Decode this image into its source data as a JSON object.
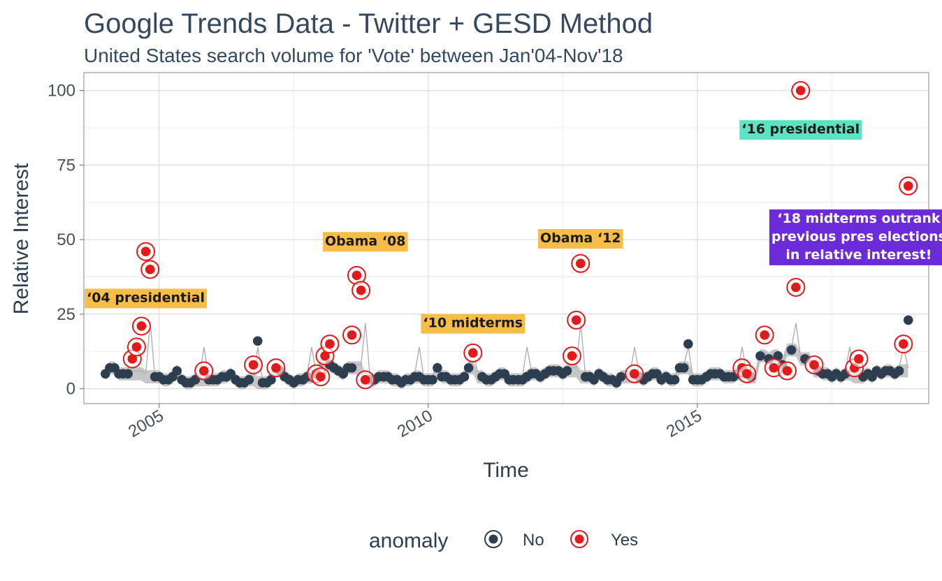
{
  "chart_data": {
    "type": "scatter",
    "title": "Google Trends Data - Twitter + GESD Method",
    "subtitle": "United States search volume for 'Vote' between Jan'04-Nov'18",
    "xlabel": "Time",
    "ylabel": "Relative Interest",
    "xlim": [
      2003.6,
      2019.3
    ],
    "ylim": [
      -5,
      106
    ],
    "x_ticks": [
      2005,
      2010,
      2015
    ],
    "x_tick_labels": [
      "2005",
      "2010",
      "2015"
    ],
    "y_ticks": [
      0,
      25,
      50,
      75,
      100
    ],
    "y_tick_labels": [
      "0",
      "25",
      "50",
      "75",
      "100"
    ],
    "grid": true,
    "legend": {
      "title": "anomaly",
      "position": "bottom",
      "entries": [
        {
          "label": "No",
          "color": "#2c3e50"
        },
        {
          "label": "Yes",
          "color": "#e31a1c"
        }
      ]
    },
    "colors": {
      "normal": "#2c3e50",
      "anomaly": "#e31a1c",
      "band": "#b3b3b3",
      "trend": "#b0b0b0"
    },
    "series": [
      {
        "name": "No",
        "points": [
          [
            2004.0,
            5
          ],
          [
            2004.08,
            7
          ],
          [
            2004.17,
            7
          ],
          [
            2004.25,
            5
          ],
          [
            2004.33,
            5
          ],
          [
            2004.42,
            5
          ],
          [
            2004.92,
            4
          ],
          [
            2005.0,
            4
          ],
          [
            2005.08,
            3
          ],
          [
            2005.17,
            3
          ],
          [
            2005.25,
            4
          ],
          [
            2005.33,
            6
          ],
          [
            2005.42,
            3
          ],
          [
            2005.5,
            2
          ],
          [
            2005.58,
            2
          ],
          [
            2005.67,
            3
          ],
          [
            2005.92,
            3
          ],
          [
            2006.0,
            3
          ],
          [
            2006.08,
            3
          ],
          [
            2006.17,
            4
          ],
          [
            2006.25,
            4
          ],
          [
            2006.33,
            5
          ],
          [
            2006.42,
            3
          ],
          [
            2006.5,
            2
          ],
          [
            2006.58,
            2
          ],
          [
            2006.67,
            3
          ],
          [
            2006.83,
            16
          ],
          [
            2006.92,
            2
          ],
          [
            2007.0,
            2
          ],
          [
            2007.08,
            3
          ],
          [
            2007.25,
            6
          ],
          [
            2007.33,
            4
          ],
          [
            2007.42,
            3
          ],
          [
            2007.5,
            2
          ],
          [
            2007.58,
            3
          ],
          [
            2007.67,
            3
          ],
          [
            2007.75,
            4
          ],
          [
            2008.17,
            8
          ],
          [
            2008.25,
            7
          ],
          [
            2008.33,
            6
          ],
          [
            2008.42,
            5
          ],
          [
            2008.5,
            7
          ],
          [
            2008.58,
            7
          ],
          [
            2008.92,
            3
          ],
          [
            2009.0,
            3
          ],
          [
            2009.08,
            4
          ],
          [
            2009.17,
            4
          ],
          [
            2009.25,
            4
          ],
          [
            2009.33,
            3
          ],
          [
            2009.42,
            3
          ],
          [
            2009.5,
            2
          ],
          [
            2009.58,
            3
          ],
          [
            2009.67,
            3
          ],
          [
            2009.75,
            4
          ],
          [
            2009.83,
            4
          ],
          [
            2009.92,
            3
          ],
          [
            2010.0,
            3
          ],
          [
            2010.08,
            3
          ],
          [
            2010.17,
            7
          ],
          [
            2010.25,
            4
          ],
          [
            2010.33,
            4
          ],
          [
            2010.42,
            3
          ],
          [
            2010.5,
            3
          ],
          [
            2010.58,
            3
          ],
          [
            2010.67,
            4
          ],
          [
            2010.75,
            7
          ],
          [
            2011.0,
            4
          ],
          [
            2011.08,
            3
          ],
          [
            2011.17,
            3
          ],
          [
            2011.25,
            4
          ],
          [
            2011.33,
            5
          ],
          [
            2011.42,
            5
          ],
          [
            2011.5,
            3
          ],
          [
            2011.58,
            3
          ],
          [
            2011.67,
            3
          ],
          [
            2011.75,
            3
          ],
          [
            2011.83,
            4
          ],
          [
            2011.92,
            5
          ],
          [
            2012.0,
            5
          ],
          [
            2012.08,
            4
          ],
          [
            2012.17,
            5
          ],
          [
            2012.25,
            6
          ],
          [
            2012.33,
            6
          ],
          [
            2012.42,
            6
          ],
          [
            2012.5,
            5
          ],
          [
            2012.58,
            6
          ],
          [
            2012.92,
            4
          ],
          [
            2013.0,
            4
          ],
          [
            2013.08,
            3
          ],
          [
            2013.17,
            5
          ],
          [
            2013.25,
            4
          ],
          [
            2013.33,
            3
          ],
          [
            2013.42,
            3
          ],
          [
            2013.5,
            2
          ],
          [
            2013.58,
            4
          ],
          [
            2013.92,
            4
          ],
          [
            2014.0,
            3
          ],
          [
            2014.08,
            4
          ],
          [
            2014.17,
            5
          ],
          [
            2014.25,
            5
          ],
          [
            2014.33,
            3
          ],
          [
            2014.42,
            4
          ],
          [
            2014.5,
            3
          ],
          [
            2014.58,
            3
          ],
          [
            2014.67,
            7
          ],
          [
            2014.75,
            7
          ],
          [
            2014.83,
            15
          ],
          [
            2014.92,
            3
          ],
          [
            2015.0,
            3
          ],
          [
            2015.08,
            3
          ],
          [
            2015.17,
            4
          ],
          [
            2015.25,
            5
          ],
          [
            2015.33,
            5
          ],
          [
            2015.42,
            5
          ],
          [
            2015.5,
            4
          ],
          [
            2015.58,
            4
          ],
          [
            2015.67,
            4
          ],
          [
            2015.75,
            5
          ],
          [
            2016.0,
            4
          ],
          [
            2016.17,
            11
          ],
          [
            2016.33,
            10
          ],
          [
            2016.5,
            11
          ],
          [
            2016.58,
            8
          ],
          [
            2016.75,
            13
          ],
          [
            2017.0,
            10
          ],
          [
            2017.25,
            6
          ],
          [
            2017.33,
            5
          ],
          [
            2017.42,
            5
          ],
          [
            2017.5,
            4
          ],
          [
            2017.58,
            5
          ],
          [
            2017.67,
            4
          ],
          [
            2017.75,
            5
          ],
          [
            2018.08,
            4
          ],
          [
            2018.17,
            5
          ],
          [
            2018.25,
            4
          ],
          [
            2018.33,
            6
          ],
          [
            2018.42,
            5
          ],
          [
            2018.5,
            6
          ],
          [
            2018.58,
            6
          ],
          [
            2018.67,
            5
          ],
          [
            2018.75,
            6
          ],
          [
            2018.92,
            23
          ]
        ]
      },
      {
        "name": "Yes",
        "points": [
          [
            2004.5,
            10
          ],
          [
            2004.58,
            14
          ],
          [
            2004.67,
            21
          ],
          [
            2004.75,
            46
          ],
          [
            2004.83,
            40
          ],
          [
            2005.83,
            6
          ],
          [
            2006.75,
            8
          ],
          [
            2007.17,
            7
          ],
          [
            2007.92,
            5
          ],
          [
            2008.0,
            4
          ],
          [
            2008.08,
            11
          ],
          [
            2008.17,
            15
          ],
          [
            2008.58,
            18
          ],
          [
            2008.67,
            38
          ],
          [
            2008.75,
            33
          ],
          [
            2008.83,
            3
          ],
          [
            2010.83,
            12
          ],
          [
            2012.67,
            11
          ],
          [
            2012.75,
            23
          ],
          [
            2012.83,
            42
          ],
          [
            2013.83,
            5
          ],
          [
            2015.83,
            7
          ],
          [
            2015.92,
            5
          ],
          [
            2016.25,
            18
          ],
          [
            2016.42,
            7
          ],
          [
            2016.67,
            6
          ],
          [
            2016.83,
            34
          ],
          [
            2016.92,
            100
          ],
          [
            2017.17,
            8
          ],
          [
            2017.92,
            7
          ],
          [
            2018.0,
            10
          ],
          [
            2018.83,
            15
          ],
          [
            2018.92,
            68
          ]
        ]
      }
    ],
    "annotations": [
      {
        "text": "‘04 presidential",
        "x": 2004.75,
        "y": 30.5,
        "fill": "#f6bd48",
        "color": "#1a1a1a"
      },
      {
        "text": "Obama ‘08",
        "x": 2008.83,
        "y": 49.5,
        "fill": "#f6bd48",
        "color": "#1a1a1a"
      },
      {
        "text": "‘10 midterms",
        "x": 2010.83,
        "y": 22,
        "fill": "#f6bd48",
        "color": "#1a1a1a"
      },
      {
        "text": "Obama ‘12",
        "x": 2012.83,
        "y": 50.5,
        "fill": "#f6bd48",
        "color": "#1a1a1a"
      },
      {
        "text": "‘16 presidential",
        "x": 2016.92,
        "y": 87,
        "fill": "#5de3c2",
        "color": "#1a1a1a"
      },
      {
        "lines": [
          "‘18 midterms outrank",
          "previous pres elections",
          "in relative interest!"
        ],
        "x": 2018.0,
        "y": 51,
        "fill": "#6c2bd9",
        "color": "#ffffff"
      }
    ]
  }
}
